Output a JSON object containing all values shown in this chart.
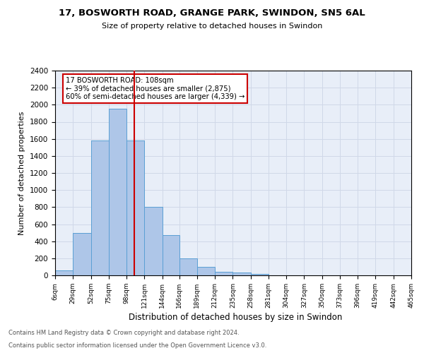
{
  "title1": "17, BOSWORTH ROAD, GRANGE PARK, SWINDON, SN5 6AL",
  "title2": "Size of property relative to detached houses in Swindon",
  "xlabel": "Distribution of detached houses by size in Swindon",
  "ylabel": "Number of detached properties",
  "bin_edges": [
    6,
    29,
    52,
    75,
    98,
    121,
    144,
    166,
    189,
    212,
    235,
    258,
    281,
    304,
    327,
    350,
    373,
    396,
    419,
    442,
    465
  ],
  "bar_heights": [
    60,
    500,
    1580,
    1950,
    1580,
    800,
    470,
    200,
    100,
    40,
    30,
    20,
    0,
    0,
    0,
    0,
    0,
    0,
    0,
    0
  ],
  "bar_color": "#aec6e8",
  "bar_edge_color": "#5a9fd4",
  "vline_x": 108,
  "vline_color": "#cc0000",
  "annotation_title": "17 BOSWORTH ROAD: 108sqm",
  "annotation_line1": "← 39% of detached houses are smaller (2,875)",
  "annotation_line2": "60% of semi-detached houses are larger (4,339) →",
  "annotation_box_color": "#cc0000",
  "annotation_bg": "#ffffff",
  "ylim": [
    0,
    2400
  ],
  "yticks": [
    0,
    200,
    400,
    600,
    800,
    1000,
    1200,
    1400,
    1600,
    1800,
    2000,
    2200,
    2400
  ],
  "grid_color": "#d0d8e8",
  "bg_color": "#e8eef8",
  "footer1": "Contains HM Land Registry data © Crown copyright and database right 2024.",
  "footer2": "Contains public sector information licensed under the Open Government Licence v3.0."
}
